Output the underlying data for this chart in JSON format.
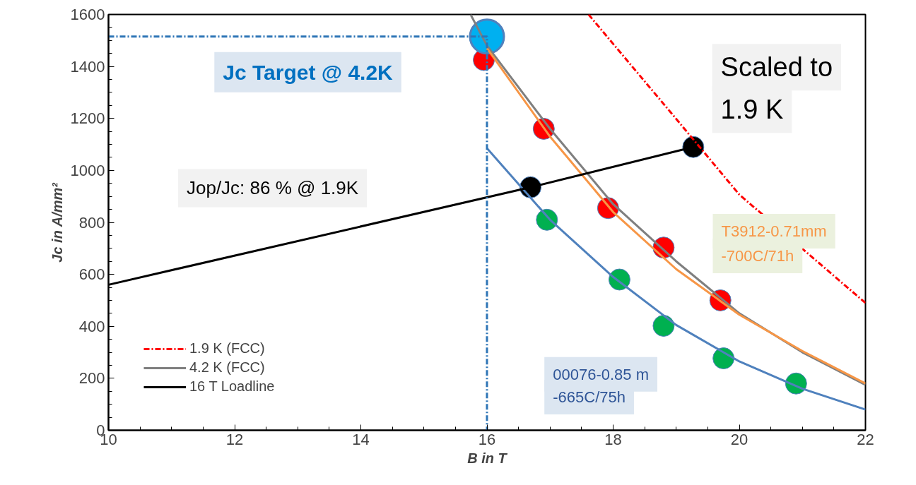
{
  "chart_data": {
    "type": "line",
    "xlabel": "B in T",
    "ylabel": "Jc in A/mm²",
    "xlim": [
      10,
      22
    ],
    "xticks": [
      10,
      12,
      14,
      16,
      18,
      20,
      22
    ],
    "ylim": [
      0,
      1600
    ],
    "yticks": [
      0,
      200,
      400,
      600,
      800,
      1000,
      1200,
      1400,
      1600
    ],
    "grid": false,
    "legend": "bottom left",
    "series": [
      {
        "name": "1.9 K (FCC)",
        "color": "#ff0000",
        "line_style": "dashed",
        "x": [
          17.61,
          18,
          19,
          20,
          22
        ],
        "values": [
          1600,
          1487,
          1198,
          907,
          490
        ]
      },
      {
        "name": "4.2 K (FCC)",
        "color": "#7f7f7f",
        "x": [
          15.74,
          16,
          17,
          18,
          19,
          20,
          21,
          22
        ],
        "values": [
          1600,
          1480,
          1160,
          870,
          650,
          450,
          300,
          175
        ]
      },
      {
        "color": "#f79646",
        "x": [
          16,
          17,
          18,
          19,
          20,
          21,
          22
        ],
        "values": [
          1470,
          1130,
          840,
          620,
          445,
          305,
          180
        ]
      },
      {
        "color": "#4f81bd",
        "x": [
          16,
          17,
          18,
          19,
          20,
          21,
          22
        ],
        "values": [
          1085,
          810,
          590,
          405,
          265,
          160,
          80
        ]
      },
      {
        "name": "16 T Loadline",
        "color": "#000000",
        "x": [
          10,
          16.69,
          19.27
        ],
        "values": [
          560,
          935,
          1090
        ]
      },
      {
        "type": "scatter",
        "marker": "circle",
        "color": "#ff0000",
        "x": [
          15.95,
          16.9,
          17.92,
          18.8,
          19.7
        ],
        "values": [
          1425,
          1160,
          855,
          703,
          500
        ]
      },
      {
        "type": "scatter",
        "marker": "circle",
        "color": "#00b050",
        "x": [
          16.95,
          18.1,
          18.8,
          19.75,
          20.9
        ],
        "values": [
          810,
          580,
          402,
          277,
          180
        ]
      },
      {
        "type": "scatter",
        "marker": "circle",
        "color": "#000000",
        "x": [
          16.69,
          19.27
        ],
        "values": [
          935,
          1090
        ]
      },
      {
        "color": "#2e75b6",
        "line_style": "dashed",
        "x": [
          10,
          16,
          16
        ],
        "values": [
          1515,
          1515,
          0
        ]
      },
      {
        "type": "scatter",
        "marker": "circle",
        "color": "#00b0f0",
        "x": [
          16
        ],
        "values": [
          1515
        ]
      }
    ],
    "annotations": [
      "Jc Target @ 4.2K",
      "Jop/Jc: 86 % @ 1.9K",
      "Scaled to\n1.9 K",
      "T3912-0.71mm\n-700C/71h",
      "00076-0.85 m\n-665C/75h"
    ]
  }
}
